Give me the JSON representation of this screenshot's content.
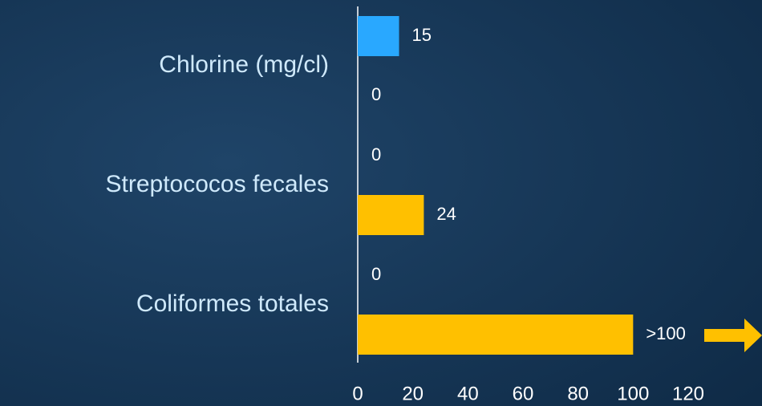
{
  "chart_data": {
    "type": "hbar",
    "categories": [
      "Chlorine (mg/cl)",
      "Streptococos fecales",
      "Coliformes totales"
    ],
    "series": [
      {
        "color": "#29a8ff",
        "values": [
          15,
          0,
          0
        ]
      },
      {
        "color": "#ffc000",
        "values": [
          0,
          24,
          100
        ],
        "value_labels": [
          "0",
          "24",
          ">100"
        ]
      }
    ],
    "xlim": [
      0,
      120
    ],
    "xticks": [
      0,
      20,
      40,
      60,
      80,
      100,
      120
    ],
    "grid": false
  }
}
